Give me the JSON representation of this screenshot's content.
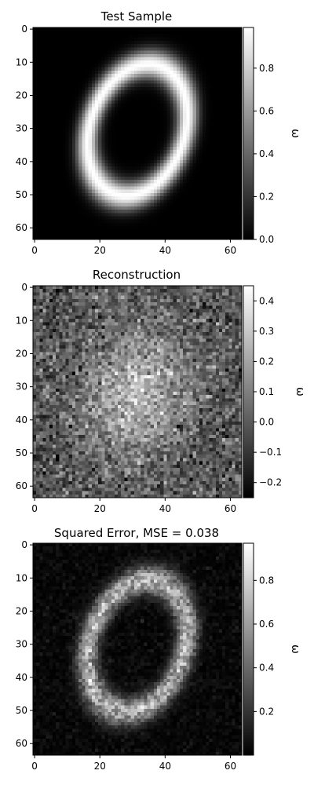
{
  "chart_data": [
    {
      "type": "heatmap",
      "title": "Test Sample",
      "colormap": "gray",
      "x_ticks": [
        "0",
        "20",
        "40",
        "60"
      ],
      "y_ticks": [
        "0",
        "10",
        "20",
        "30",
        "40",
        "50",
        "60"
      ],
      "xlim": [
        -0.5,
        63.5
      ],
      "ylim": [
        63.5,
        -0.5
      ],
      "grid_size": [
        64,
        64
      ],
      "colorbar": {
        "label": "ω",
        "range": [
          0.0,
          0.99
        ],
        "ticks": [
          "0.0",
          "0.2",
          "0.4",
          "0.6",
          "0.8"
        ],
        "tick_values": [
          0.0,
          0.2,
          0.4,
          0.6,
          0.8
        ]
      },
      "pattern": "ring",
      "ring": {
        "cx": 31.5,
        "cy": 30.5,
        "rx": 14.5,
        "ry": 20.5,
        "tilt_deg": 20,
        "width": 2.6,
        "peak": 0.99
      },
      "noise": 0.0
    },
    {
      "type": "heatmap",
      "title": "Reconstruction",
      "colormap": "gray",
      "x_ticks": [
        "0",
        "20",
        "40",
        "60"
      ],
      "y_ticks": [
        "0",
        "10",
        "20",
        "30",
        "40",
        "50",
        "60"
      ],
      "xlim": [
        -0.5,
        63.5
      ],
      "ylim": [
        63.5,
        -0.5
      ],
      "grid_size": [
        64,
        64
      ],
      "colorbar": {
        "label": "ω",
        "range": [
          -0.25,
          0.45
        ],
        "ticks": [
          "−0.2",
          "−0.1",
          "0.0",
          "0.1",
          "0.2",
          "0.3",
          "0.4"
        ],
        "tick_values": [
          -0.2,
          -0.1,
          0.0,
          0.1,
          0.2,
          0.3,
          0.4
        ]
      },
      "pattern": "blob",
      "blob": {
        "cx": 31.5,
        "cy": 32,
        "rx": 17,
        "ry": 21,
        "tilt_deg": 20,
        "peak": 0.28,
        "base": -0.02
      },
      "noise": 0.09
    },
    {
      "type": "heatmap",
      "title": "Squared Error, MSE = 0.038",
      "colormap": "gray",
      "x_ticks": [
        "0",
        "20",
        "40",
        "60"
      ],
      "y_ticks": [
        "0",
        "10",
        "20",
        "30",
        "40",
        "50",
        "60"
      ],
      "xlim": [
        -0.5,
        63.5
      ],
      "ylim": [
        63.5,
        -0.5
      ],
      "grid_size": [
        64,
        64
      ],
      "colorbar": {
        "label": "ω",
        "range": [
          0.0,
          0.97
        ],
        "ticks": [
          "0.2",
          "0.4",
          "0.6",
          "0.8"
        ],
        "tick_values": [
          0.2,
          0.4,
          0.6,
          0.8
        ]
      },
      "pattern": "ring",
      "ring": {
        "cx": 31.5,
        "cy": 30.5,
        "rx": 14.5,
        "ry": 20.5,
        "tilt_deg": 20,
        "width": 2.6,
        "peak": 0.75
      },
      "noise": 0.12
    }
  ]
}
